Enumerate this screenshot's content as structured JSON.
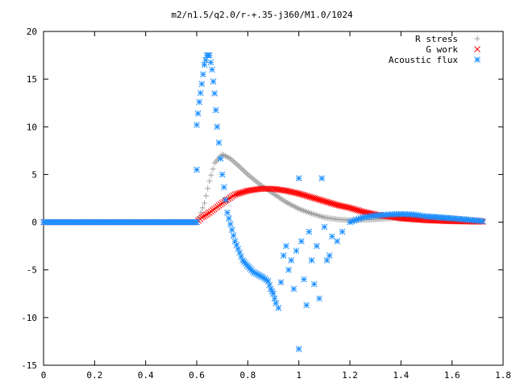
{
  "chart_data": {
    "type": "scatter",
    "title": "m2/n1.5/q2.0/r-+.35-j360/M1.0/1024",
    "xlabel": "",
    "ylabel": "",
    "xlim": [
      0,
      1.8
    ],
    "ylim": [
      -15,
      20
    ],
    "x_ticks": [
      "0",
      "0.2",
      "0.4",
      "0.6",
      "0.8",
      "1",
      "1.2",
      "1.4",
      "1.6",
      "1.8"
    ],
    "y_ticks": [
      "-15",
      "-10",
      "-5",
      "0",
      "5",
      "10",
      "15",
      "20"
    ],
    "grid": false,
    "legend_position": "top-right",
    "series": [
      {
        "name": "R stress",
        "marker": "plus",
        "color": "#a0a0a0",
        "points": [
          [
            0,
            0
          ],
          [
            0.1,
            0
          ],
          [
            0.2,
            0
          ],
          [
            0.3,
            0
          ],
          [
            0.4,
            0
          ],
          [
            0.5,
            0
          ],
          [
            0.6,
            0
          ],
          [
            0.61,
            0.5
          ],
          [
            0.63,
            2.0
          ],
          [
            0.65,
            4.3
          ],
          [
            0.67,
            6.2
          ],
          [
            0.7,
            7.1
          ],
          [
            0.73,
            6.7
          ],
          [
            0.76,
            6.0
          ],
          [
            0.8,
            5.0
          ],
          [
            0.85,
            3.9
          ],
          [
            0.9,
            3.0
          ],
          [
            0.95,
            2.1
          ],
          [
            1.0,
            1.4
          ],
          [
            1.05,
            0.9
          ],
          [
            1.1,
            0.5
          ],
          [
            1.15,
            0.3
          ],
          [
            1.2,
            0.2
          ],
          [
            1.3,
            0.3
          ],
          [
            1.4,
            0.5
          ],
          [
            1.5,
            0.5
          ],
          [
            1.6,
            0.4
          ],
          [
            1.72,
            0.2
          ]
        ]
      },
      {
        "name": "G work",
        "marker": "cross",
        "color": "#ff0000",
        "points": [
          [
            0,
            0
          ],
          [
            0.1,
            0
          ],
          [
            0.2,
            0
          ],
          [
            0.3,
            0
          ],
          [
            0.4,
            0
          ],
          [
            0.5,
            0
          ],
          [
            0.6,
            0
          ],
          [
            0.62,
            0.5
          ],
          [
            0.65,
            1.0
          ],
          [
            0.7,
            2.0
          ],
          [
            0.75,
            2.9
          ],
          [
            0.8,
            3.3
          ],
          [
            0.85,
            3.5
          ],
          [
            0.9,
            3.5
          ],
          [
            0.95,
            3.3
          ],
          [
            1.0,
            3.0
          ],
          [
            1.05,
            2.6
          ],
          [
            1.1,
            2.2
          ],
          [
            1.15,
            1.8
          ],
          [
            1.2,
            1.5
          ],
          [
            1.25,
            1.1
          ],
          [
            1.3,
            0.8
          ],
          [
            1.35,
            0.6
          ],
          [
            1.4,
            0.4
          ],
          [
            1.5,
            0.2
          ],
          [
            1.6,
            0.1
          ],
          [
            1.72,
            0.05
          ]
        ]
      },
      {
        "name": "Acoustic flux",
        "marker": "star",
        "color": "#1e90ff",
        "points": [
          [
            0,
            0
          ],
          [
            0.1,
            0
          ],
          [
            0.2,
            0
          ],
          [
            0.3,
            0
          ],
          [
            0.4,
            0
          ],
          [
            0.5,
            0
          ],
          [
            0.6,
            0
          ],
          [
            0.6,
            5.5
          ],
          [
            0.6,
            10.2
          ],
          [
            0.61,
            12.6
          ],
          [
            0.62,
            14.5
          ],
          [
            0.63,
            16.5
          ],
          [
            0.64,
            17.5
          ],
          [
            0.65,
            17.5
          ],
          [
            0.66,
            16.0
          ],
          [
            0.67,
            13.5
          ],
          [
            0.68,
            10.0
          ],
          [
            0.7,
            5.0
          ],
          [
            0.72,
            1.0
          ],
          [
            0.75,
            -2.0
          ],
          [
            0.78,
            -4.0
          ],
          [
            0.82,
            -5.2
          ],
          [
            0.86,
            -5.8
          ],
          [
            0.88,
            -6.2
          ],
          [
            0.89,
            -7.0
          ],
          [
            0.9,
            -7.5
          ],
          [
            0.91,
            -8.5
          ],
          [
            0.92,
            -9.0
          ],
          [
            0.93,
            -6.3
          ],
          [
            0.94,
            -3.5
          ],
          [
            0.95,
            -2.5
          ],
          [
            0.96,
            -5.0
          ],
          [
            0.97,
            -4.0
          ],
          [
            0.98,
            -7.0
          ],
          [
            0.99,
            -3.0
          ],
          [
            1.0,
            -13.3
          ],
          [
            1.0,
            4.6
          ],
          [
            1.01,
            -2.0
          ],
          [
            1.02,
            -6.0
          ],
          [
            1.03,
            -8.7
          ],
          [
            1.04,
            -1.0
          ],
          [
            1.05,
            -4.0
          ],
          [
            1.06,
            -6.5
          ],
          [
            1.07,
            -2.5
          ],
          [
            1.08,
            -8.0
          ],
          [
            1.09,
            4.6
          ],
          [
            1.1,
            -0.5
          ],
          [
            1.11,
            -4.0
          ],
          [
            1.12,
            -3.5
          ],
          [
            1.13,
            -1.5
          ],
          [
            1.15,
            -2.0
          ],
          [
            1.17,
            -1.0
          ],
          [
            1.2,
            0.0
          ],
          [
            1.25,
            0.5
          ],
          [
            1.3,
            0.7
          ],
          [
            1.35,
            0.8
          ],
          [
            1.4,
            0.85
          ],
          [
            1.45,
            0.8
          ],
          [
            1.5,
            0.6
          ],
          [
            1.6,
            0.4
          ],
          [
            1.72,
            0.1
          ]
        ]
      }
    ]
  }
}
